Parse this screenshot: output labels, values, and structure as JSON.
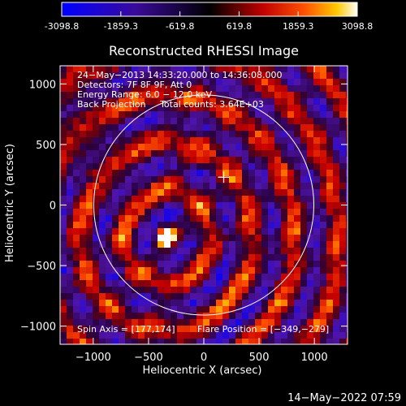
{
  "colorbar": {
    "ticks": [
      "-3098.8",
      "-1859.3",
      "-619.8",
      "619.8",
      "1859.3",
      "3098.8"
    ],
    "range": [
      -3098.8,
      3098.8
    ],
    "colors": [
      "#0000ff",
      "#4400aa",
      "#000000",
      "#aa0000",
      "#ff5500",
      "#ffcc00",
      "#ffffff"
    ]
  },
  "chart_data": {
    "type": "heatmap",
    "title": "Reconstructed RHESSI Image",
    "xlabel": "Heliocentric X (arcsec)",
    "ylabel": "Heliocentric Y (arcsec)",
    "xlim": [
      -1300,
      1300
    ],
    "ylim": [
      -1150,
      1150
    ],
    "xticks": [
      -1000,
      -500,
      0,
      500,
      1000
    ],
    "yticks": [
      -1000,
      -500,
      0,
      500,
      1000
    ],
    "xtick_labels": [
      "−1000",
      "−500",
      "0",
      "500",
      "1000"
    ],
    "ytick_labels": [
      "−1000",
      "−500",
      "0",
      "500",
      "1000"
    ],
    "solar_limb_radius": 950,
    "cross_position": [
      180,
      230
    ],
    "bright_source": [
      -340,
      -260
    ],
    "info_lines": [
      "24−May−2013 14:33:20.000 to 14:36:08.000",
      "Detectors: 7F 8F 9F, Att 0",
      "Energy Range: 6.0 − 12.0 keV",
      "Back Projection     Total counts: 3.64E+03"
    ],
    "spin_axis": "Spin Axis = [177,174]",
    "flare_position": "Flare Position = [−349,−279]"
  },
  "footer": {
    "timestamp": "14−May−2022 07:59"
  }
}
